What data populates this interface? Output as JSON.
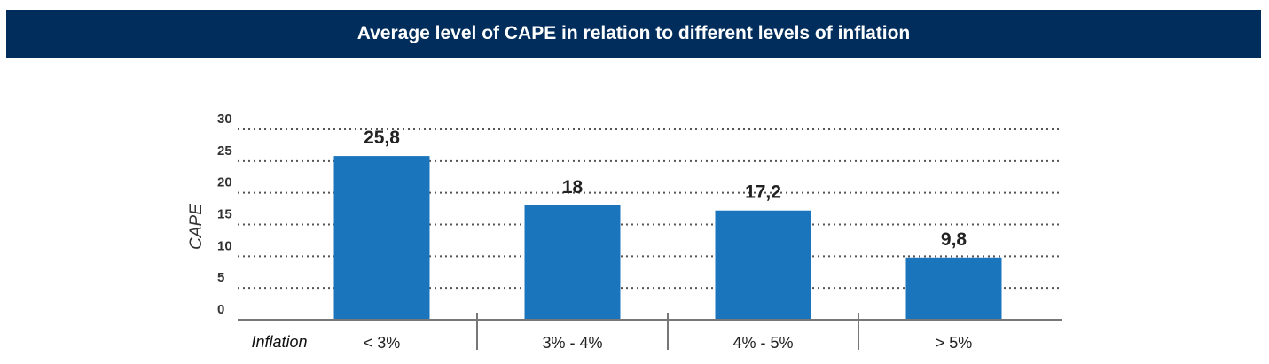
{
  "title": "Average level of CAPE in relation to different levels of inflation",
  "colors": {
    "header_bg": "#002d5c",
    "bar": "#1b75bc",
    "grid": "#555555"
  },
  "chart_data": {
    "type": "bar",
    "title": "Average level of CAPE in relation to different levels of inflation",
    "xlabel": "Inflation",
    "ylabel": "CAPE",
    "categories": [
      "< 3%",
      "3% - 4%",
      "4% - 5%",
      "> 5%"
    ],
    "values": [
      25.8,
      18,
      17.2,
      9.8
    ],
    "value_labels": [
      "25,8",
      "18",
      "17,2",
      "9,8"
    ],
    "yticks": [
      "0",
      "5",
      "10",
      "15",
      "20",
      "25",
      "30"
    ],
    "ylim": [
      0,
      30
    ],
    "grid": true,
    "legend": "none"
  }
}
